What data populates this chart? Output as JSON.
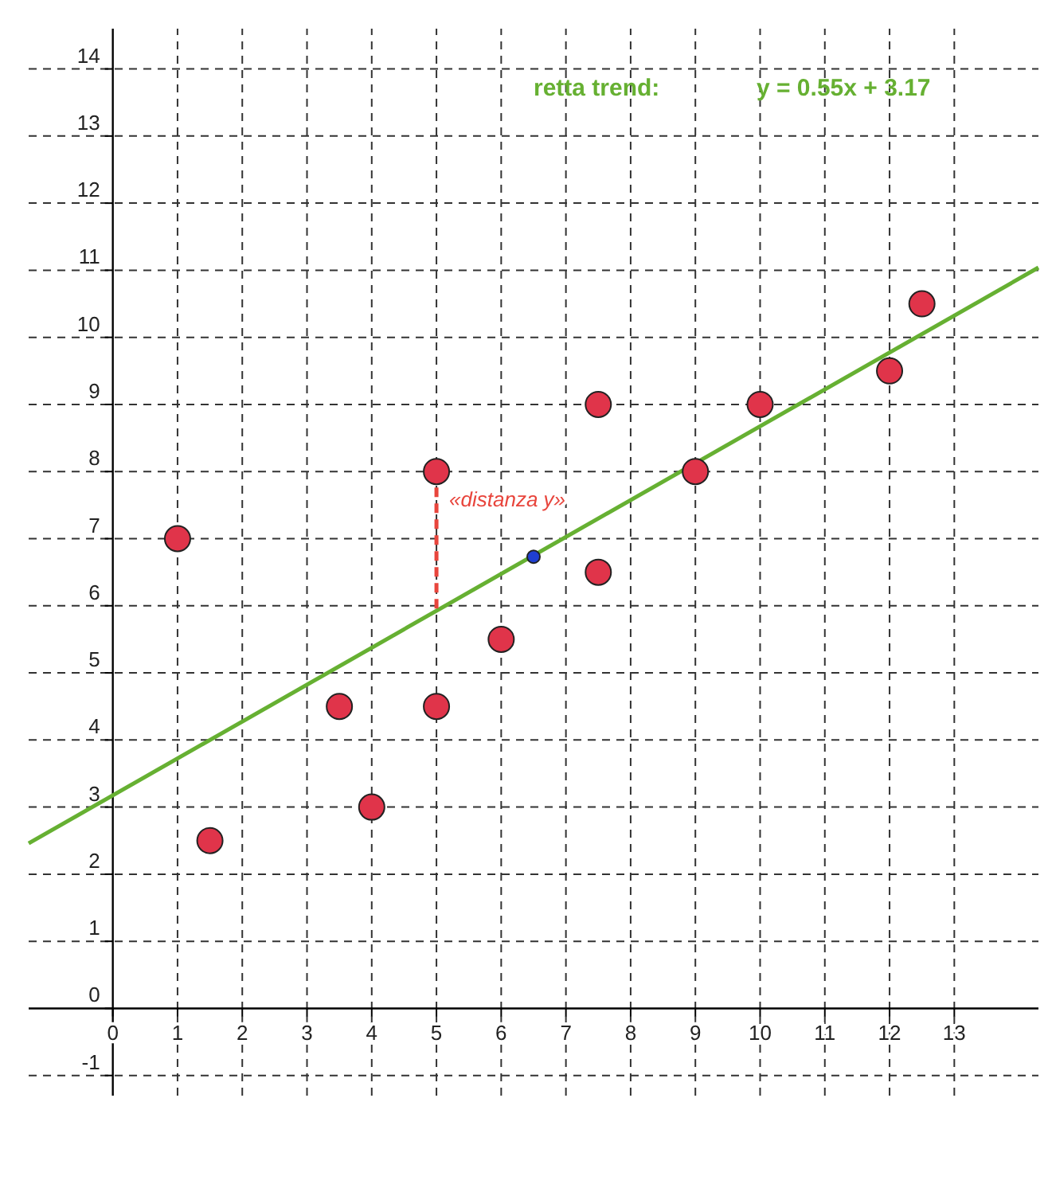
{
  "chart_data": {
    "type": "scatter",
    "annotations": [
      "retta trend:",
      "y = 0.55x + 3.17",
      "«distanza y»"
    ],
    "xlim": [
      -1.3,
      14.3
    ],
    "ylim": [
      -1.3,
      14.6
    ],
    "xticks": [
      0,
      1,
      2,
      3,
      4,
      5,
      6,
      7,
      8,
      9,
      10,
      11,
      12,
      13
    ],
    "yticks": [
      -1,
      0,
      1,
      2,
      3,
      4,
      5,
      6,
      7,
      8,
      9,
      10,
      11,
      12,
      13,
      14
    ],
    "grid": true,
    "marker": "circle",
    "series": [
      {
        "type": "line",
        "color": "#66b032",
        "marker": "none",
        "line_style": "solid",
        "x": [
          -1.3,
          14.3
        ],
        "values": [
          2.46,
          11.04
        ]
      },
      {
        "type": "line",
        "color": "#e8453c",
        "marker": "none",
        "line_style": "dashed",
        "x": [
          5,
          5
        ],
        "values": [
          8,
          5.92
        ]
      },
      {
        "color": "#e0344a",
        "x": [
          1,
          1.5,
          3.5,
          4,
          5,
          5,
          6,
          7.5,
          7.5,
          9,
          10,
          12,
          12.5
        ],
        "values": [
          7,
          2.5,
          4.5,
          3,
          8,
          4.5,
          5.5,
          9,
          6.5,
          8,
          9,
          9.5,
          10.5
        ]
      },
      {
        "color": "#1f3fd0",
        "x": [
          6.5
        ],
        "values": [
          6.73
        ]
      }
    ]
  }
}
